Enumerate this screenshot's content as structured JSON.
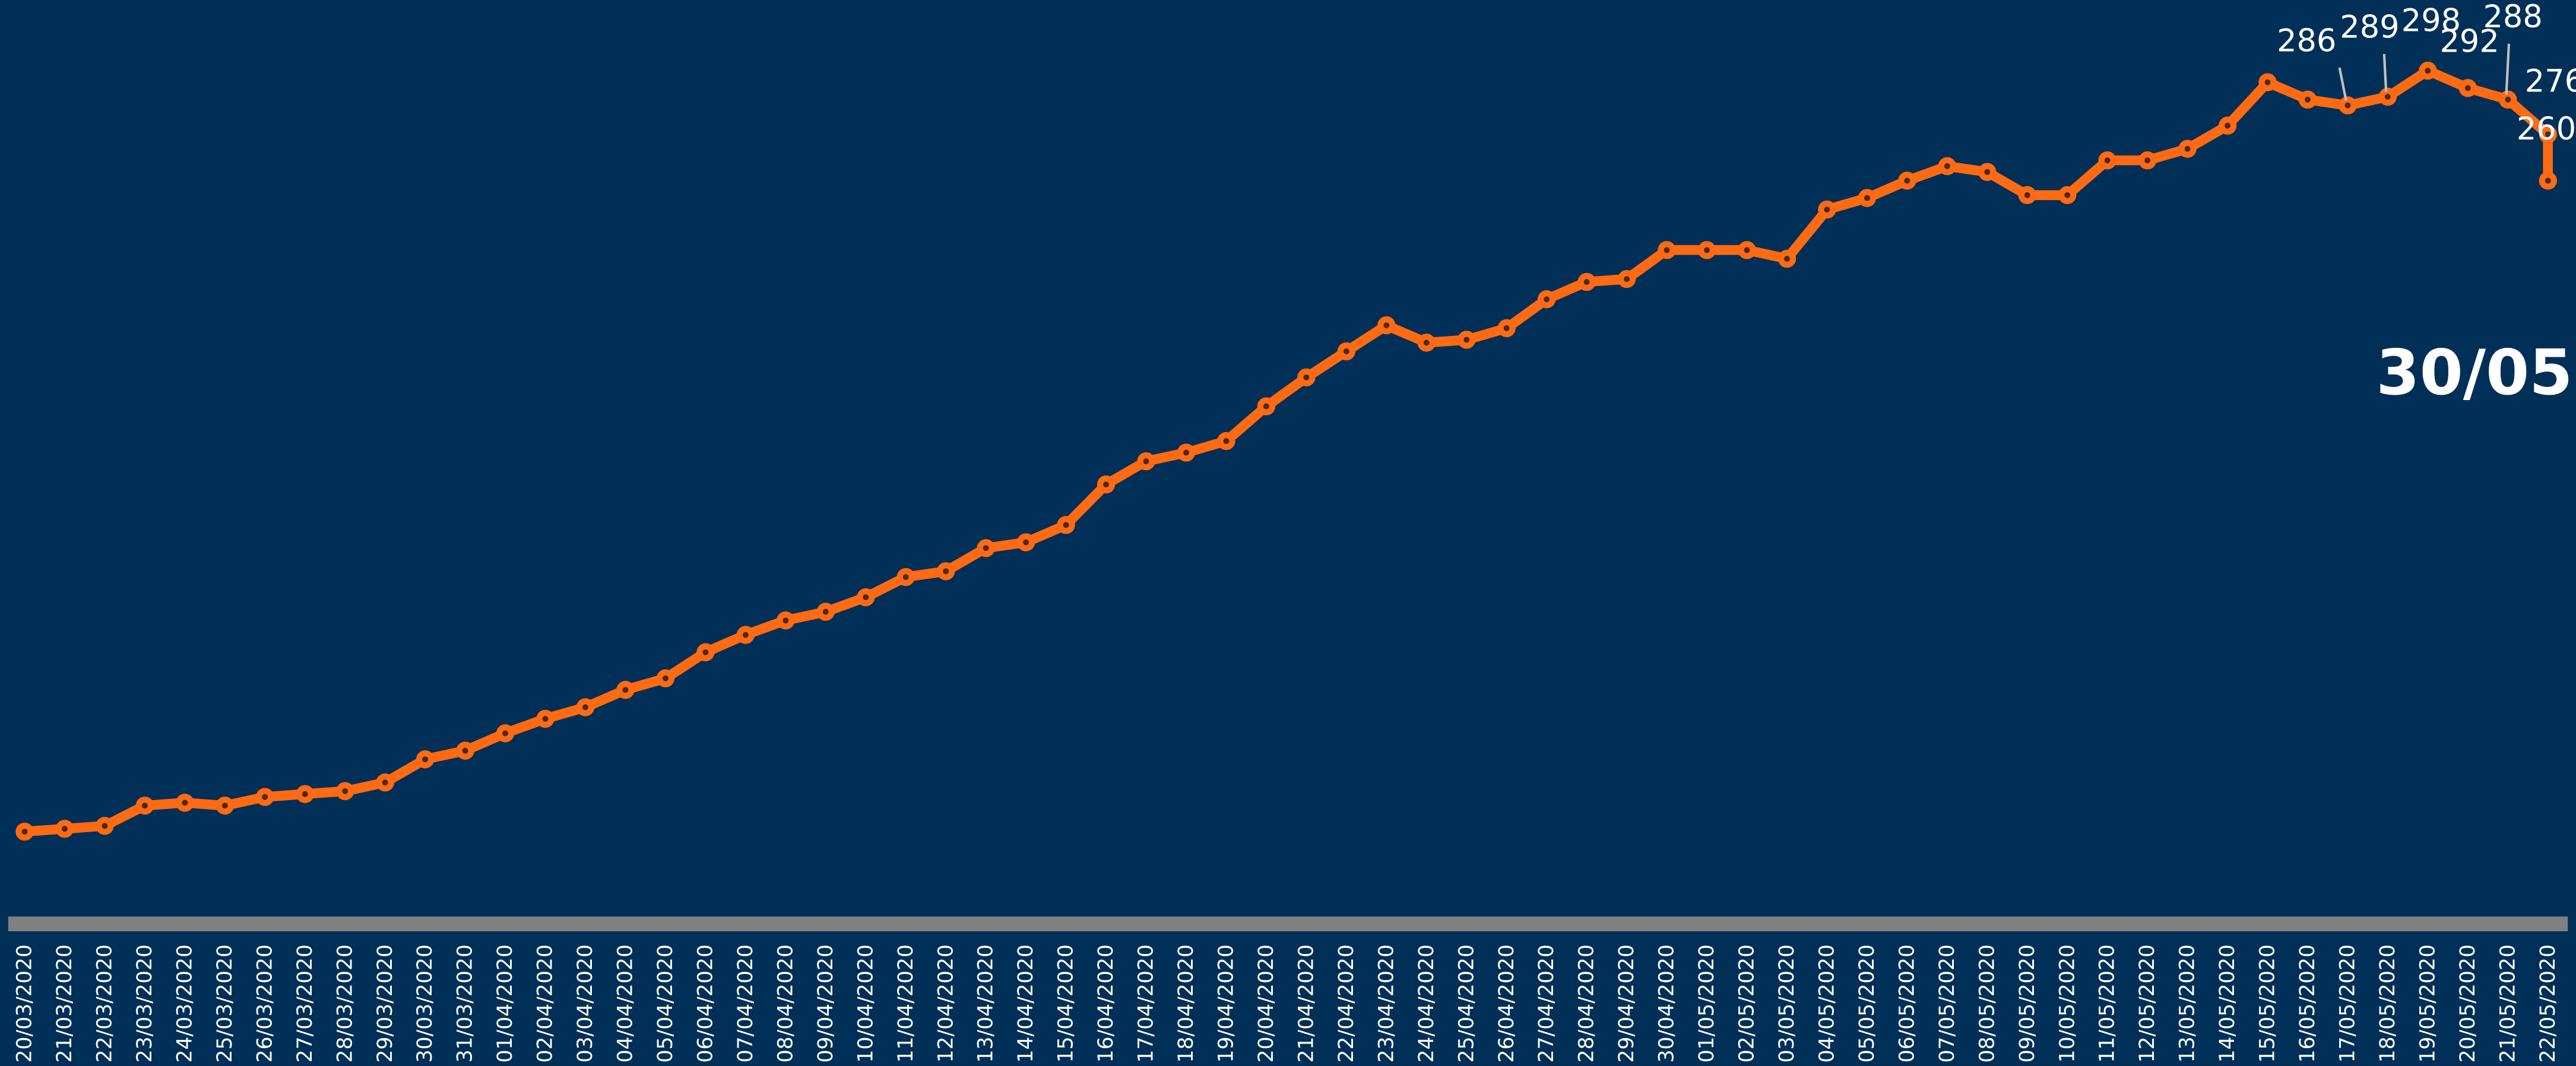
{
  "chart_data": {
    "type": "line",
    "annotation": "30/05",
    "categories": [
      "20/03/2020",
      "21/03/2020",
      "22/03/2020",
      "23/03/2020",
      "24/03/2020",
      "25/03/2020",
      "26/03/2020",
      "27/03/2020",
      "28/03/2020",
      "29/03/2020",
      "30/03/2020",
      "31/03/2020",
      "01/04/2020",
      "02/04/2020",
      "03/04/2020",
      "04/04/2020",
      "05/04/2020",
      "06/04/2020",
      "07/04/2020",
      "08/04/2020",
      "09/04/2020",
      "10/04/2020",
      "11/04/2020",
      "12/04/2020",
      "13/04/2020",
      "14/04/2020",
      "15/04/2020",
      "16/04/2020",
      "17/04/2020",
      "18/04/2020",
      "19/04/2020",
      "20/04/2020",
      "21/04/2020",
      "22/04/2020",
      "23/04/2020",
      "24/04/2020",
      "25/04/2020",
      "26/04/2020",
      "27/04/2020",
      "28/04/2020",
      "29/04/2020",
      "30/04/2020",
      "01/05/2020",
      "02/05/2020",
      "03/05/2020",
      "04/05/2020",
      "05/05/2020",
      "06/05/2020",
      "07/05/2020",
      "08/05/2020",
      "09/05/2020",
      "10/05/2020",
      "11/05/2020",
      "12/05/2020",
      "13/05/2020",
      "14/05/2020",
      "15/05/2020",
      "16/05/2020",
      "17/05/2020",
      "18/05/2020",
      "19/05/2020",
      "20/05/2020",
      "21/05/2020",
      "22/05/2020",
      null
    ],
    "values": [
      35,
      36,
      37,
      44,
      45,
      44,
      47,
      48,
      49,
      52,
      60,
      63,
      69,
      74,
      78,
      84,
      88,
      97,
      103,
      108,
      111,
      116,
      123,
      125,
      133,
      135,
      141,
      155,
      163,
      166,
      170,
      182,
      192,
      201,
      210,
      204,
      205,
      209,
      219,
      225,
      226,
      236,
      236,
      236,
      233,
      250,
      254,
      260,
      265,
      263,
      255,
      255,
      267,
      267,
      271,
      279,
      294,
      288,
      286,
      289,
      298,
      292,
      288,
      276,
      260
    ],
    "value_labels": [
      null,
      null,
      null,
      null,
      null,
      null,
      null,
      null,
      null,
      null,
      null,
      null,
      null,
      null,
      null,
      null,
      null,
      null,
      null,
      null,
      null,
      null,
      null,
      null,
      null,
      null,
      null,
      null,
      null,
      null,
      null,
      null,
      null,
      null,
      null,
      null,
      null,
      null,
      null,
      null,
      null,
      null,
      null,
      null,
      null,
      null,
      null,
      null,
      null,
      null,
      null,
      null,
      null,
      null,
      null,
      null,
      null,
      null,
      "286",
      "289",
      "298",
      "292",
      "288",
      "276",
      "260"
    ],
    "color": "#ff6a13",
    "ylim": [
      0,
      300
    ]
  }
}
